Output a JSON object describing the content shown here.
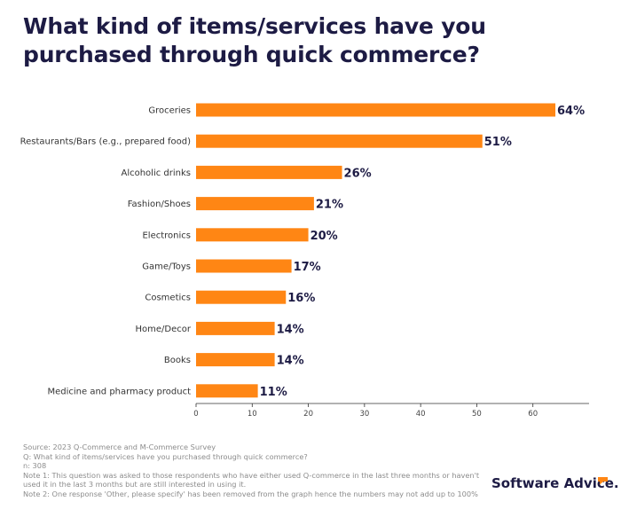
{
  "title": "What kind of items/services have you purchased through quick commerce?",
  "chart_data": {
    "type": "bar",
    "orientation": "horizontal",
    "categories": [
      "Groceries",
      "Restaurants/Bars (e.g., prepared food)",
      "Alcoholic drinks",
      "Fashion/Shoes",
      "Electronics",
      "Game/Toys",
      "Cosmetics",
      "Home/Decor",
      "Books",
      "Medicine and pharmacy product"
    ],
    "values": [
      64,
      51,
      26,
      21,
      20,
      17,
      16,
      14,
      14,
      11
    ],
    "data_labels": [
      "64%",
      "51%",
      "26%",
      "21%",
      "20%",
      "17%",
      "16%",
      "14%",
      "14%",
      "11%"
    ],
    "xlim": [
      0,
      70
    ],
    "xticks": [
      0,
      10,
      20,
      30,
      40,
      50,
      60
    ],
    "xlabel": "",
    "ylabel": "",
    "grid": false,
    "bar_color": "#ff8614"
  },
  "footnotes": {
    "source": "Source: 2023 Q-Commerce and M-Commerce Survey",
    "question": "Q: What kind of items/services have you purchased through quick commerce?",
    "n": "n: 308",
    "note1": "Note 1: This question was asked to those respondents who have either used Q-commerce in the last three months or haven't used it in the last 3 months but are still interested in using it.",
    "note2": "Note 2: One response 'Other, please specify' has been removed from the graph hence the numbers may not add up to 100%"
  },
  "brand": {
    "name": "Software Advice.",
    "accent_color": "#ff8614"
  },
  "colors": {
    "title": "#1d1b44",
    "bar": "#ff8614",
    "label": "#333333",
    "value_label": "#1d1b44",
    "footnote": "#8c8c8c"
  }
}
